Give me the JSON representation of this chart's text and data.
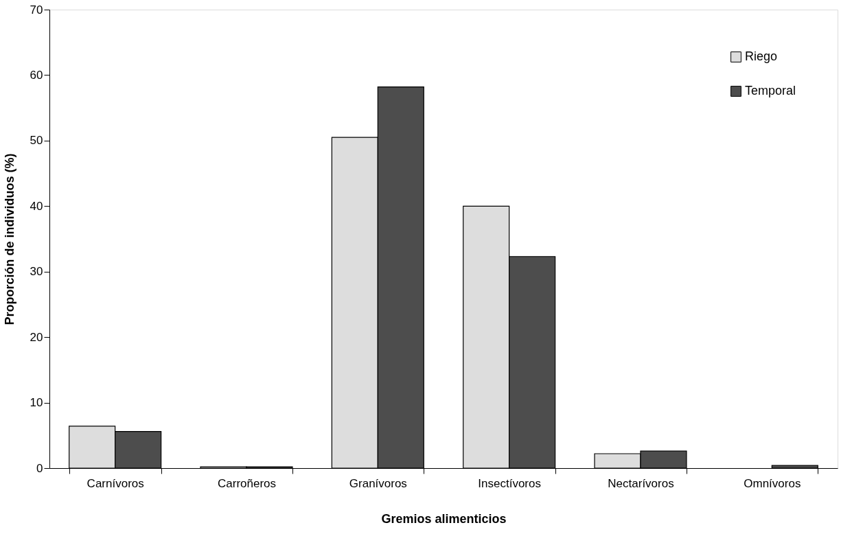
{
  "chart_data": {
    "type": "bar",
    "xlabel": "Gremios alimenticios",
    "ylabel": "Proporción de individuos (%)",
    "categories": [
      "Carnívoros",
      "Carroñeros",
      "Granívoros",
      "Insectívoros",
      "Nectarívoros",
      "Omnívoros"
    ],
    "series": [
      {
        "name": "Riego",
        "color": "#dddddd",
        "values": [
          6.4,
          0.2,
          50.5,
          40.0,
          2.2,
          null
        ]
      },
      {
        "name": "Temporal",
        "color": "#4d4d4d",
        "values": [
          5.6,
          0.2,
          58.2,
          32.3,
          2.6,
          0.4
        ]
      }
    ],
    "ylim": [
      0,
      70
    ],
    "yticks": [
      0,
      10,
      20,
      30,
      40,
      50,
      60,
      70
    ],
    "grid": false,
    "legend": "top right"
  }
}
